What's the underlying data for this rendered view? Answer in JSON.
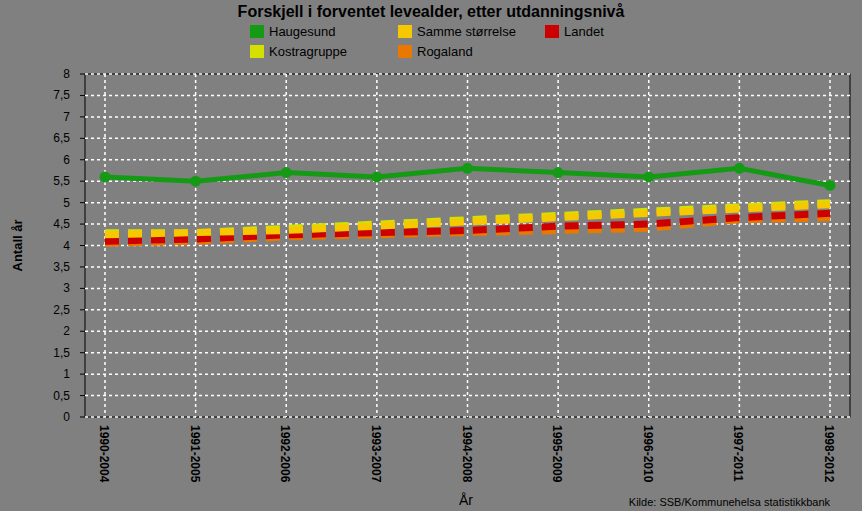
{
  "chart_data": {
    "type": "line",
    "title": "Forskjell i forventet levealder, etter utdanningsnivå",
    "x_label": "År",
    "y_label": "Antall år",
    "source": "Kilde: SSB/Kommunehelsa statistikkbank",
    "categories": [
      "1990-2004",
      "1991-2005",
      "1992-2006",
      "1993-2007",
      "1994-2008",
      "1995-2009",
      "1996-2010",
      "1997-2011",
      "1998-2012"
    ],
    "series": [
      {
        "name": "Haugesund",
        "color": "#159a15",
        "line_style": "solid",
        "marker": "circle",
        "values": [
          5.6,
          5.5,
          5.7,
          5.6,
          5.8,
          5.7,
          5.6,
          5.8,
          5.4
        ]
      },
      {
        "name": "Samme størrelse",
        "color": "#f5c800",
        "line_style": "dashed",
        "values": [
          4.25,
          4.3,
          4.35,
          4.45,
          4.55,
          4.65,
          4.75,
          4.85,
          4.95
        ]
      },
      {
        "name": "Landet",
        "color": "#cc0000",
        "line_style": "dashed",
        "values": [
          4.1,
          4.15,
          4.25,
          4.3,
          4.35,
          4.45,
          4.5,
          4.65,
          4.75
        ]
      },
      {
        "name": "Kostragruppe",
        "color": "#d4e000",
        "line_style": "dashed",
        "values": [
          4.3,
          4.3,
          4.4,
          4.5,
          4.6,
          4.7,
          4.8,
          4.9,
          5.0
        ]
      },
      {
        "name": "Rogaland",
        "color": "#e87800",
        "line_style": "dashed",
        "values": [
          4.05,
          4.1,
          4.2,
          4.25,
          4.3,
          4.35,
          4.4,
          4.6,
          4.65
        ]
      }
    ],
    "ylim": [
      0,
      8
    ],
    "yticks": [
      0,
      {
        "value": 0.5,
        "label": "0,5"
      },
      1,
      {
        "value": 1.5,
        "label": "1,5"
      },
      2,
      {
        "value": 2.5,
        "label": "2,5"
      },
      3,
      {
        "value": 3.5,
        "label": "3,5"
      },
      4,
      {
        "value": 4.5,
        "label": "4,5"
      },
      5,
      {
        "value": 5.5,
        "label": "5,5"
      },
      6,
      {
        "value": 6.5,
        "label": "6,5"
      },
      7,
      {
        "value": 7.5,
        "label": "7,5"
      },
      8
    ],
    "grid": true,
    "legend": "top"
  }
}
